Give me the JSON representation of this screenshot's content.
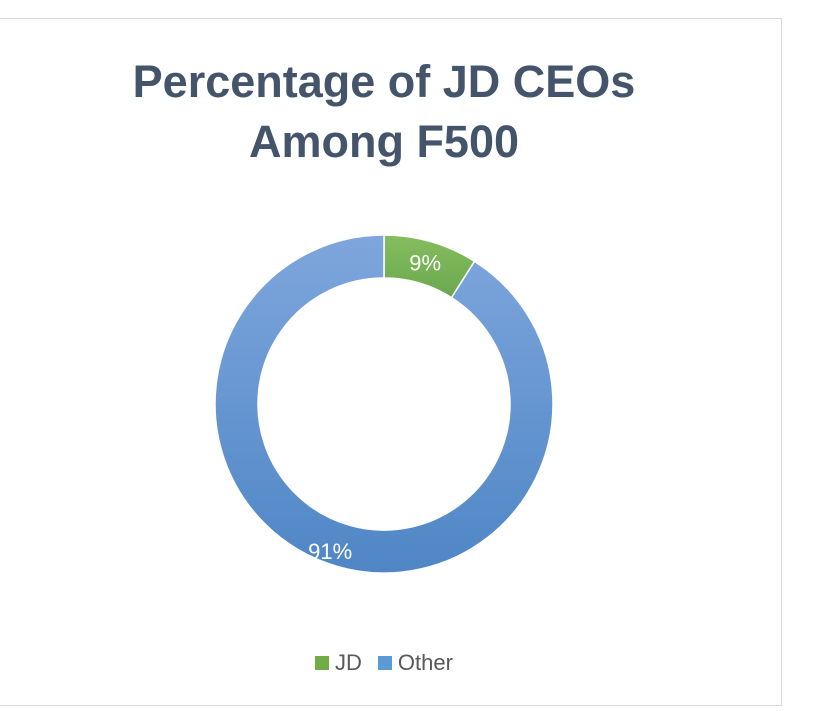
{
  "chart_data": {
    "type": "pie",
    "style": "donut",
    "title_lines": [
      "Percentage of JD CEOs",
      "Among F500"
    ],
    "categories": [
      "JD",
      "Other"
    ],
    "values": [
      9,
      91
    ],
    "data_labels": [
      "9%",
      "91%"
    ],
    "colors": [
      "#70ad47",
      "#5b9bd5"
    ],
    "legend_position": "bottom"
  }
}
